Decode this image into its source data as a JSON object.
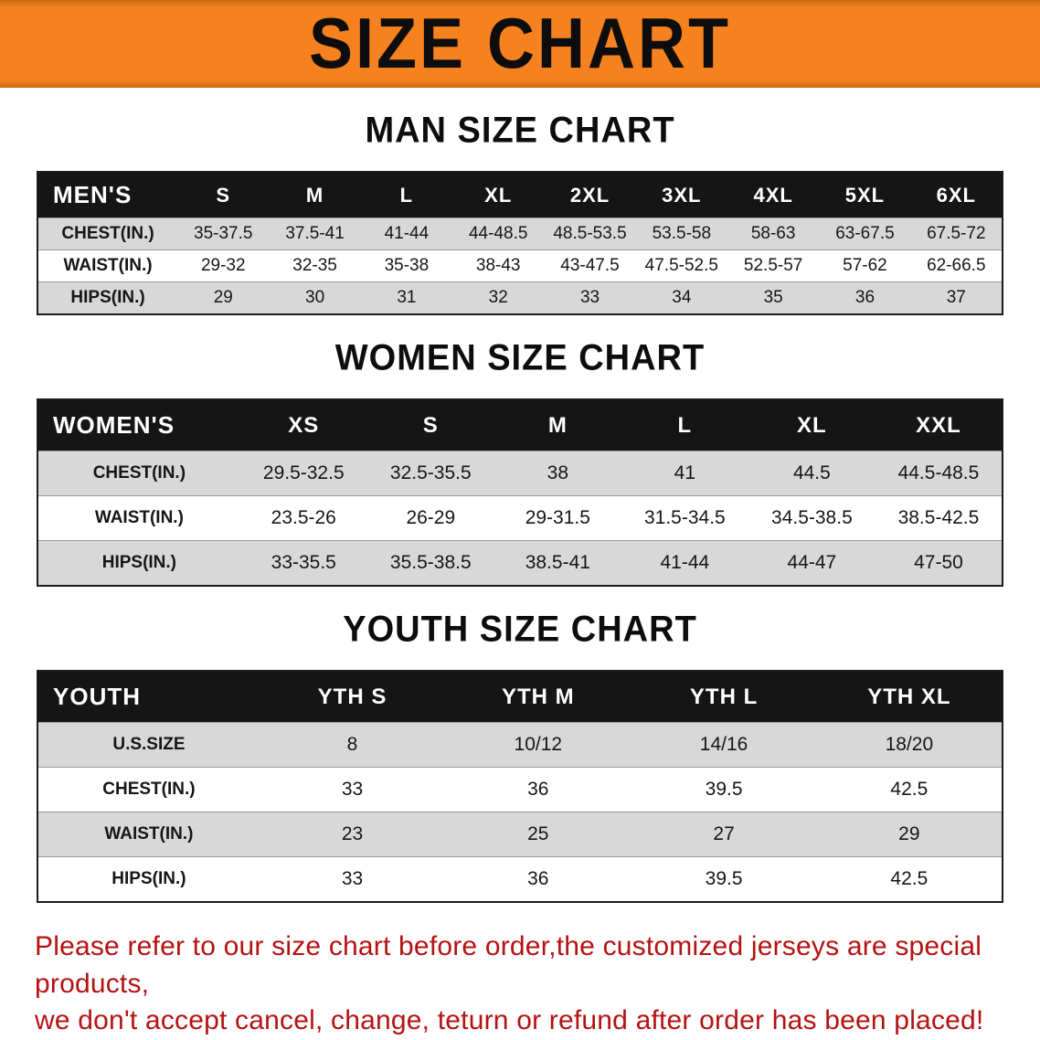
{
  "banner": {
    "title": "SIZE CHART"
  },
  "colors": {
    "banner_orange": "#F5821F",
    "banner_orange_dark": "#C8690A",
    "header_black": "#151515",
    "row_stripe_gray": "#D8D8D8",
    "footer_red": "#B51212"
  },
  "sections": [
    {
      "heading": "MAN SIZE CHART",
      "table": {
        "header": [
          "MEN'S",
          "S",
          "M",
          "L",
          "XL",
          "2XL",
          "3XL",
          "4XL",
          "5XL",
          "6XL"
        ],
        "rows": [
          [
            "CHEST(IN.)",
            "35-37.5",
            "37.5-41",
            "41-44",
            "44-48.5",
            "48.5-53.5",
            "53.5-58",
            "58-63",
            "63-67.5",
            "67.5-72"
          ],
          [
            "WAIST(IN.)",
            "29-32",
            "32-35",
            "35-38",
            "38-43",
            "43-47.5",
            "47.5-52.5",
            "52.5-57",
            "57-62",
            "62-66.5"
          ],
          [
            "HIPS(IN.)",
            "29",
            "30",
            "31",
            "32",
            "33",
            "34",
            "35",
            "36",
            "37"
          ]
        ]
      }
    },
    {
      "heading": "WOMEN SIZE CHART",
      "table": {
        "header": [
          "WOMEN'S",
          "XS",
          "S",
          "M",
          "L",
          "XL",
          "XXL"
        ],
        "rows": [
          [
            "CHEST(IN.)",
            "29.5-32.5",
            "32.5-35.5",
            "38",
            "41",
            "44.5",
            "44.5-48.5"
          ],
          [
            "WAIST(IN.)",
            "23.5-26",
            "26-29",
            "29-31.5",
            "31.5-34.5",
            "34.5-38.5",
            "38.5-42.5"
          ],
          [
            "HIPS(IN.)",
            "33-35.5",
            "35.5-38.5",
            "38.5-41",
            "41-44",
            "44-47",
            "47-50"
          ]
        ]
      }
    },
    {
      "heading": "YOUTH SIZE CHART",
      "table": {
        "header": [
          "YOUTH",
          "YTH S",
          "YTH M",
          "YTH L",
          "YTH XL"
        ],
        "rows": [
          [
            "U.S.SIZE",
            "8",
            "10/12",
            "14/16",
            "18/20"
          ],
          [
            "CHEST(IN.)",
            "33",
            "36",
            "39.5",
            "42.5"
          ],
          [
            "WAIST(IN.)",
            "23",
            "25",
            "27",
            "29"
          ],
          [
            "HIPS(IN.)",
            "33",
            "36",
            "39.5",
            "42.5"
          ]
        ]
      }
    }
  ],
  "footer": {
    "lines": [
      "Please refer to our size chart before order,the customized jerseys are special products,",
      "we don't accept cancel, change, teturn or refund after order has been placed!"
    ]
  }
}
